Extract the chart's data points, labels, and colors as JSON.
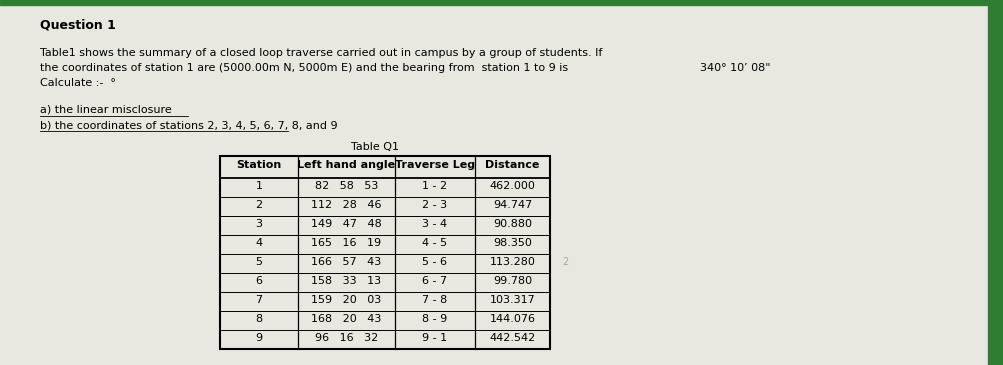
{
  "title": "Question 1",
  "paragraph1": "Table1 shows the summary of a closed loop traverse carried out in campus by a group of students. If",
  "paragraph2": "the coordinates of station 1 are (5000.00m N, 5000m E) and the bearing from  station 1 to 9 is",
  "bearing": "340° 10’ 08\"",
  "paragraph3": "Calculate :-  °",
  "bullet_a": "a) the linear misclosure",
  "bullet_b": "b) the coordinates of stations 2, 3, 4, 5, 6, 7, 8, and 9",
  "table_title": "Table Q1",
  "col_headers": [
    "Station",
    "Left hand angle",
    "Traverse Leg",
    "Distance"
  ],
  "rows": [
    [
      "1",
      "82   58   53",
      "1 - 2",
      "462.000"
    ],
    [
      "2",
      "112   28   46",
      "2 - 3",
      "94.747"
    ],
    [
      "3",
      "149   47   48",
      "3 - 4",
      "90.880"
    ],
    [
      "4",
      "165   16   19",
      "4 - 5",
      "98.350"
    ],
    [
      "5",
      "166   57   43",
      "5 - 6",
      "113.280"
    ],
    [
      "6",
      "158   33   13",
      "6 - 7",
      "99.780"
    ],
    [
      "7",
      "159   20   03",
      "7 - 8",
      "103.317"
    ],
    [
      "8",
      "168   20   43",
      "8 - 9",
      "144.076"
    ],
    [
      "9",
      "96   16   32",
      "9 - 1",
      "442.542"
    ]
  ],
  "bg_color": "#e8e8e0",
  "top_bar_color": "#2e7d32",
  "right_bar_color": "#2e7d32",
  "font_color": "#000000",
  "font_size_title": 9,
  "font_size_body": 8,
  "font_size_table": 8
}
